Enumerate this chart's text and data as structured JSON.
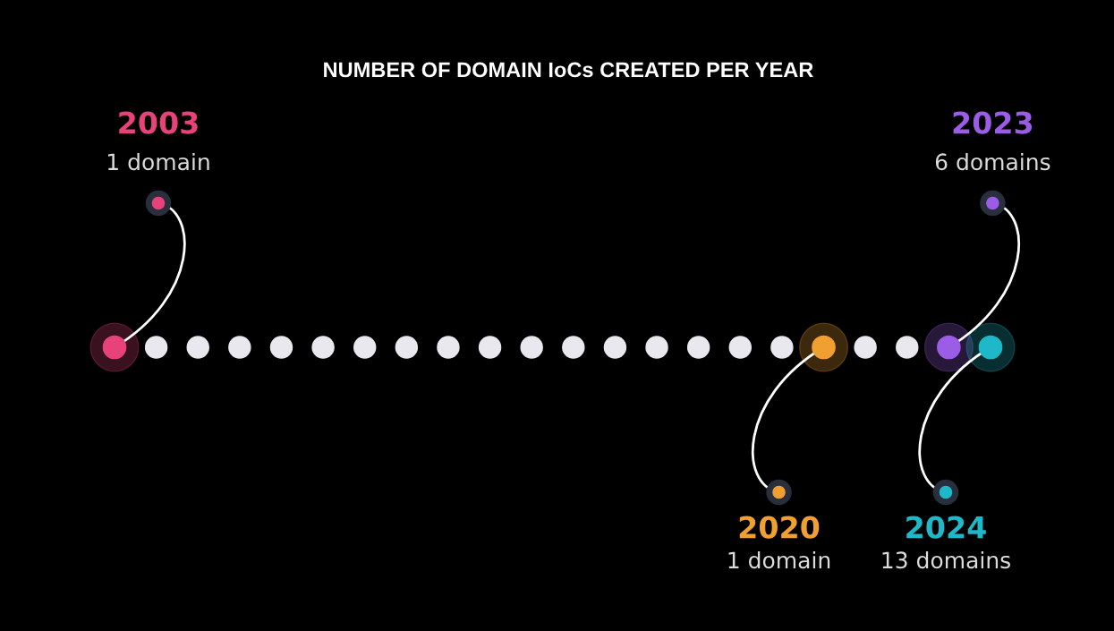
{
  "chart_data": {
    "type": "other",
    "title": "NUMBER OF DOMAIN IoCs CREATED PER YEAR",
    "categories": [
      "2003",
      null,
      null,
      null,
      null,
      null,
      null,
      null,
      null,
      null,
      null,
      null,
      null,
      null,
      null,
      null,
      null,
      "2020",
      null,
      null,
      "2023",
      "2024"
    ],
    "values": [
      1,
      null,
      null,
      null,
      null,
      null,
      null,
      null,
      null,
      null,
      null,
      null,
      null,
      null,
      null,
      null,
      null,
      1,
      null,
      null,
      6,
      13
    ],
    "value_labels": [
      "1 domain",
      null,
      null,
      null,
      null,
      null,
      null,
      null,
      null,
      null,
      null,
      null,
      null,
      null,
      null,
      null,
      null,
      "1 domain",
      null,
      null,
      "6 domains",
      "13 domains"
    ],
    "colors": [
      "#e8427a",
      "#e8e8ee",
      "#e8e8ee",
      "#e8e8ee",
      "#e8e8ee",
      "#e8e8ee",
      "#e8e8ee",
      "#e8e8ee",
      "#e8e8ee",
      "#e8e8ee",
      "#e8e8ee",
      "#e8e8ee",
      "#e8e8ee",
      "#e8e8ee",
      "#e8e8ee",
      "#e8e8ee",
      "#e8e8ee",
      "#f0a030",
      "#e8e8ee",
      "#e8e8ee",
      "#9b5de5",
      "#1fb8c8"
    ]
  }
}
